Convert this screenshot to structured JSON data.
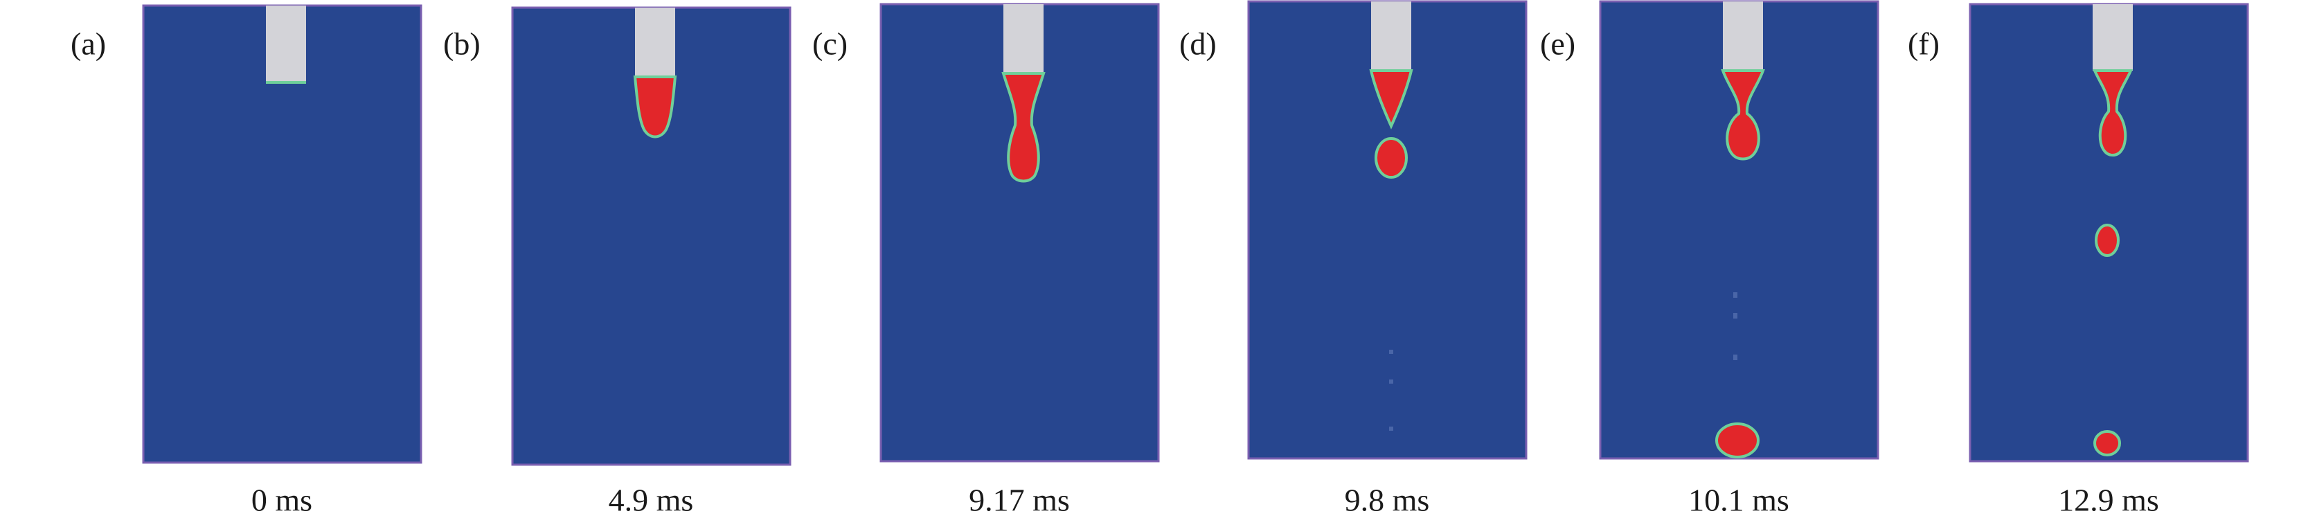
{
  "panels": [
    {
      "label": "(a)",
      "time": "0 ms"
    },
    {
      "label": "(b)",
      "time": "4.9 ms"
    },
    {
      "label": "(c)",
      "time": "9.17 ms"
    },
    {
      "label": "(d)",
      "time": "9.8 ms"
    },
    {
      "label": "(e)",
      "time": "10.1 ms"
    },
    {
      "label": "(f)",
      "time": "12.9 ms"
    }
  ]
}
